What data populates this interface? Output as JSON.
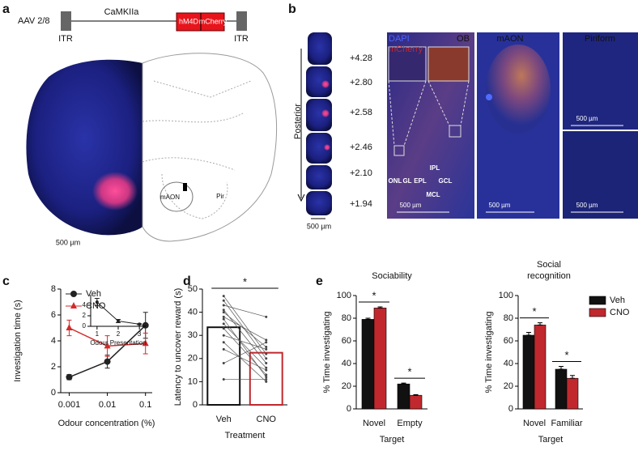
{
  "panel_a": {
    "label": "a",
    "vector": "AAV 2/8",
    "itr_left": "ITR",
    "promoter": "CaMKIIa",
    "gene": "hM4D",
    "reporter": "mCherry",
    "itr_right": "ITR",
    "scale_bar": "500 µm",
    "regions": [
      "mAON",
      "Pir"
    ]
  },
  "panel_b": {
    "label": "b",
    "axis": "Posterior",
    "coordinates": [
      "+4.28",
      "+2.80",
      "+2.58",
      "+2.46",
      "+2.10",
      "+1.94"
    ],
    "scale_bar": "500 µm",
    "channels": [
      "DAPI",
      "mCherry"
    ],
    "images": [
      {
        "title": "OB",
        "scale_bar": "500 µm",
        "layers": [
          "ONL",
          "GL",
          "EPL",
          "IPL",
          "MCL",
          "GCL"
        ]
      },
      {
        "title": "mAON",
        "scale_bar": "500 µm"
      },
      {
        "title": "Piriform",
        "scale_bars": [
          "500 µm",
          "500 µm"
        ]
      }
    ]
  },
  "chart_data": [
    {
      "type": "line",
      "panel": "c",
      "x": [
        0.001,
        0.01,
        0.1
      ],
      "log_x": true,
      "xlim": [
        0.0006,
        0.15
      ],
      "xticks": [
        0.001,
        0.01,
        0.1
      ],
      "ylim": [
        0,
        8
      ],
      "yticks": [
        0,
        2,
        4,
        6,
        8
      ],
      "y_label": "Investigation time (s)",
      "x_label": "Odour concentration (%)",
      "legend": "upper left",
      "series": [
        {
          "name": "Veh",
          "color": "#222222",
          "marker": "circle",
          "values": [
            1.2,
            2.4,
            5.2
          ],
          "errors": [
            0.2,
            0.5,
            1.0
          ]
        },
        {
          "name": "CNO",
          "color": "#d42a2a",
          "marker": "triangle",
          "values": [
            5.0,
            3.6,
            3.8
          ],
          "errors": [
            0.6,
            0.8,
            0.8
          ]
        }
      ],
      "inset": {
        "type": "line",
        "x": [
          1,
          2,
          3
        ],
        "xlim": [
          0.7,
          3.3
        ],
        "xticks": [
          1,
          2,
          3
        ],
        "ylim": [
          0,
          6
        ],
        "yticks": [
          0,
          2,
          4
        ],
        "x_label": "Odour Presentation",
        "series": [
          {
            "color": "#222222",
            "marker": "circle",
            "values": [
              4.6,
              1.0,
              0.4
            ],
            "errors": [
              0.7,
              0.3,
              0.1
            ]
          }
        ]
      }
    },
    {
      "type": "bar",
      "panel": "d",
      "categories": [
        "Veh",
        "CNO"
      ],
      "values": [
        33.5,
        22.5
      ],
      "colors": [
        "#111111",
        "#c0282d"
      ],
      "ylim": [
        0,
        50
      ],
      "yticks": [
        0,
        10,
        20,
        30,
        40,
        50
      ],
      "y_label": "Latency to uncover reward (s)",
      "x_label": "Treatment",
      "annotation": "*",
      "paired_values": [
        [
          47,
          22
        ],
        [
          45,
          20
        ],
        [
          43,
          38
        ],
        [
          41,
          18
        ],
        [
          40,
          25
        ],
        [
          38,
          28
        ],
        [
          37,
          12
        ],
        [
          35,
          16
        ],
        [
          33,
          13
        ],
        [
          30,
          24
        ],
        [
          27,
          10
        ],
        [
          24,
          15
        ],
        [
          18,
          27
        ],
        [
          11,
          11
        ]
      ]
    },
    {
      "type": "grouped_bar",
      "panel": "e",
      "title": "Sociability",
      "categories": [
        "Novel",
        "Empty"
      ],
      "series": [
        {
          "color": "#111111",
          "values": [
            79,
            22
          ],
          "errors": [
            1,
            0.8
          ]
        },
        {
          "color": "#c0282d",
          "values": [
            89,
            12
          ],
          "errors": [
            1,
            0.6
          ]
        }
      ],
      "ylim": [
        0,
        100
      ],
      "yticks": [
        0,
        20,
        40,
        60,
        80,
        100
      ],
      "y_label": "% Time investigating",
      "x_label": "Target",
      "annotations": [
        "*",
        "*"
      ]
    },
    {
      "type": "grouped_bar",
      "title": "Social recognition",
      "categories": [
        "Novel",
        "Familiar"
      ],
      "legend": "upper right",
      "series": [
        {
          "name": "Veh",
          "color": "#111111",
          "values": [
            65,
            35
          ],
          "errors": [
            2.5,
            2.5
          ]
        },
        {
          "name": "CNO",
          "color": "#c0282d",
          "values": [
            74,
            27
          ],
          "errors": [
            2,
            2.5
          ]
        }
      ],
      "ylim": [
        0,
        100
      ],
      "yticks": [
        0,
        20,
        40,
        60,
        80,
        100
      ],
      "y_label": "% Time investigating",
      "x_label": "Target",
      "annotations": [
        "*",
        "*"
      ]
    }
  ]
}
